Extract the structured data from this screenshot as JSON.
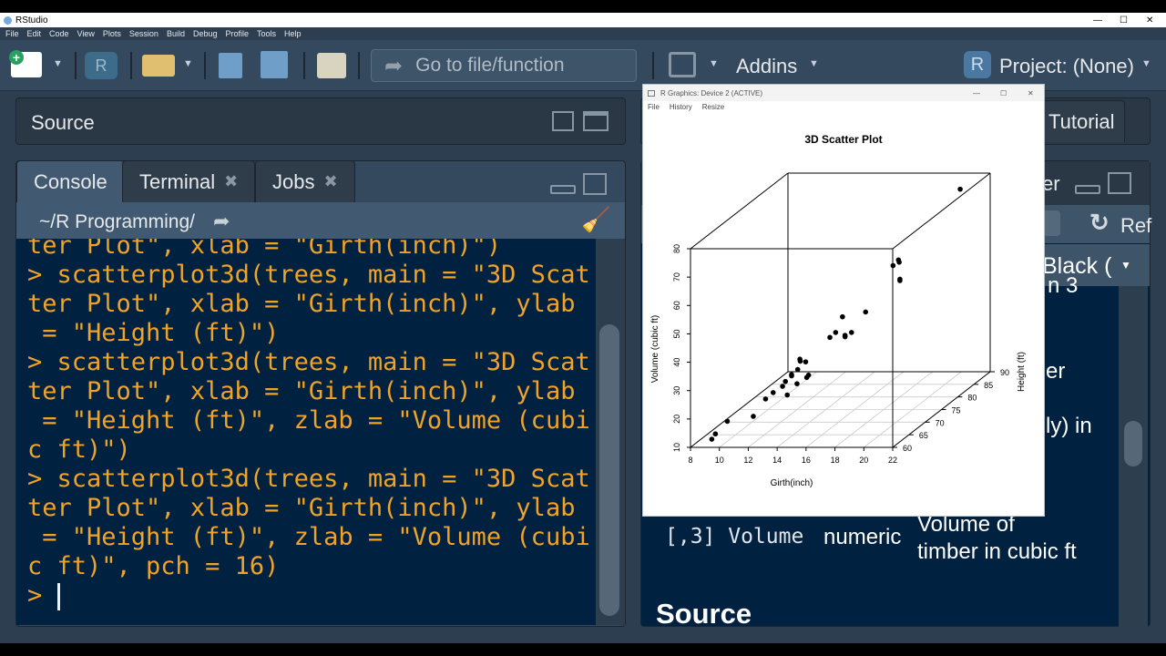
{
  "window": {
    "title": "RStudio"
  },
  "menu": [
    "File",
    "Edit",
    "Code",
    "View",
    "Plots",
    "Session",
    "Build",
    "Debug",
    "Profile",
    "Tools",
    "Help"
  ],
  "toolbar": {
    "goto_placeholder": "Go to file/function",
    "addins": "Addins",
    "project": "Project: (None)"
  },
  "source": {
    "title": "Source"
  },
  "console": {
    "tabs": [
      "Console",
      "Terminal",
      "Jobs"
    ],
    "path": "~/R Programming/",
    "lines": [
      "ter Plot\", xlab = \"Girth(inch)\")",
      "> scatterplot3d(trees, main = \"3D Scat",
      "ter Plot\", xlab = \"Girth(inch)\", ylab",
      " = \"Height (ft)\")",
      "> scatterplot3d(trees, main = \"3D Scat",
      "ter Plot\", xlab = \"Girth(inch)\", ylab",
      " = \"Height (ft)\", zlab = \"Volume (cubi",
      "c ft)\")",
      "> scatterplot3d(trees, main = \"3D Scat",
      "ter Plot\", xlab = \"Girth(inch)\", ylab",
      " = \"Height (ft)\", zlab = \"Volume (cubi",
      "c ft)\", pch = 16)",
      "> "
    ]
  },
  "right_pane": {
    "top_tab": "Tutorial",
    "lower_tab_fragment": "er",
    "refresh_label": "Ref",
    "theme_select": "Black (",
    "text_fragments": [
      "n 3",
      "er",
      "ly) in"
    ],
    "row_code": "[,3] Volume",
    "row_type": "numeric",
    "row_desc_1": "Volume of",
    "row_desc_2": "timber in cubic ft",
    "section": "Source"
  },
  "plot_window": {
    "title": "R Graphics: Device 2 (ACTIVE)",
    "menu": [
      "File",
      "History",
      "Resize"
    ]
  },
  "chart_data": {
    "type": "scatter3d",
    "title": "3D Scatter Plot",
    "xlabel": "Girth(inch)",
    "ylabel": "Height (ft)",
    "zlabel": "Volume (cubic ft)",
    "xlim": [
      8,
      22
    ],
    "ylim": [
      60,
      90
    ],
    "zlim": [
      10,
      80
    ],
    "xticks": [
      8,
      10,
      12,
      14,
      16,
      18,
      20,
      22
    ],
    "yticks": [
      60,
      65,
      70,
      75,
      80,
      85,
      90
    ],
    "zticks": [
      10,
      20,
      30,
      40,
      50,
      60,
      70,
      80
    ],
    "grid": true,
    "point_color": "#000000",
    "points": [
      [
        8.3,
        70,
        10.3
      ],
      [
        8.6,
        65,
        10.3
      ],
      [
        8.8,
        63,
        10.2
      ],
      [
        10.5,
        72,
        16.4
      ],
      [
        10.7,
        81,
        18.8
      ],
      [
        10.8,
        83,
        19.7
      ],
      [
        11.0,
        66,
        15.6
      ],
      [
        11.0,
        75,
        18.2
      ],
      [
        11.1,
        80,
        22.6
      ],
      [
        11.2,
        75,
        19.9
      ],
      [
        11.3,
        79,
        24.2
      ],
      [
        11.4,
        76,
        21.0
      ],
      [
        11.4,
        76,
        21.4
      ],
      [
        11.7,
        69,
        21.3
      ],
      [
        12.0,
        75,
        19.1
      ],
      [
        12.9,
        74,
        22.2
      ],
      [
        12.9,
        85,
        33.8
      ],
      [
        13.3,
        86,
        27.4
      ],
      [
        13.7,
        71,
        25.7
      ],
      [
        13.8,
        64,
        24.9
      ],
      [
        14.0,
        78,
        34.5
      ],
      [
        14.2,
        80,
        31.7
      ],
      [
        14.5,
        74,
        36.3
      ],
      [
        16.0,
        72,
        38.3
      ],
      [
        16.3,
        77,
        42.6
      ],
      [
        17.3,
        81,
        55.4
      ],
      [
        17.5,
        82,
        55.7
      ],
      [
        17.9,
        80,
        58.3
      ],
      [
        18.0,
        80,
        51.5
      ],
      [
        18.0,
        80,
        51.0
      ],
      [
        20.6,
        87,
        77.0
      ]
    ]
  }
}
